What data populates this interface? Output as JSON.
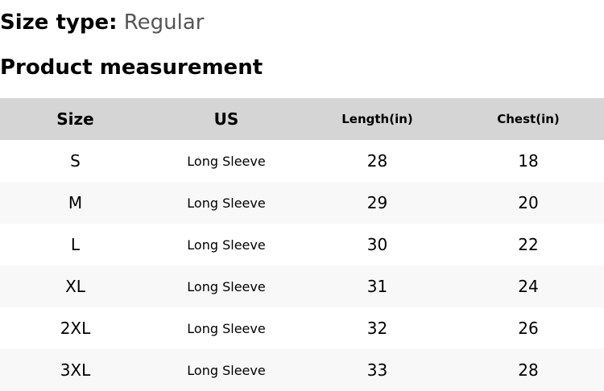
{
  "size_type": {
    "label": "Size type:",
    "value": "Regular"
  },
  "section_title": "Product measurement",
  "table": {
    "headers": [
      "Size",
      "US",
      "Length(in)",
      "Chest(in)"
    ],
    "rows": [
      [
        "S",
        "Long Sleeve",
        "28",
        "18"
      ],
      [
        "M",
        "Long Sleeve",
        "29",
        "20"
      ],
      [
        "L",
        "Long Sleeve",
        "30",
        "22"
      ],
      [
        "XL",
        "Long Sleeve",
        "31",
        "24"
      ],
      [
        "2XL",
        "Long Sleeve",
        "32",
        "26"
      ],
      [
        "3XL",
        "Long Sleeve",
        "33",
        "28"
      ]
    ]
  },
  "colors": {
    "header_background": "#d5d5d5",
    "row_stripe": "#f8f8f8",
    "value_text": "#555555"
  }
}
